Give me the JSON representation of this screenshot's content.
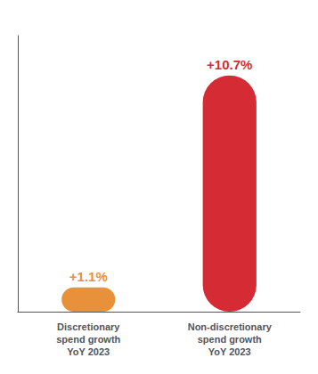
{
  "chart_data": {
    "type": "bar",
    "categories": [
      "Discretionary\nspend growth\nYoY 2023",
      "Non-discretionary\nspend growth\nYoY 2023"
    ],
    "values": [
      1.1,
      10.7
    ],
    "value_labels": [
      "+1.1%",
      "+10.7%"
    ],
    "colors": [
      "#E8913A",
      "#D42B35"
    ],
    "ylim": [
      0,
      12.5
    ],
    "data_labels": true,
    "grid": false,
    "tick_labels": "x"
  }
}
